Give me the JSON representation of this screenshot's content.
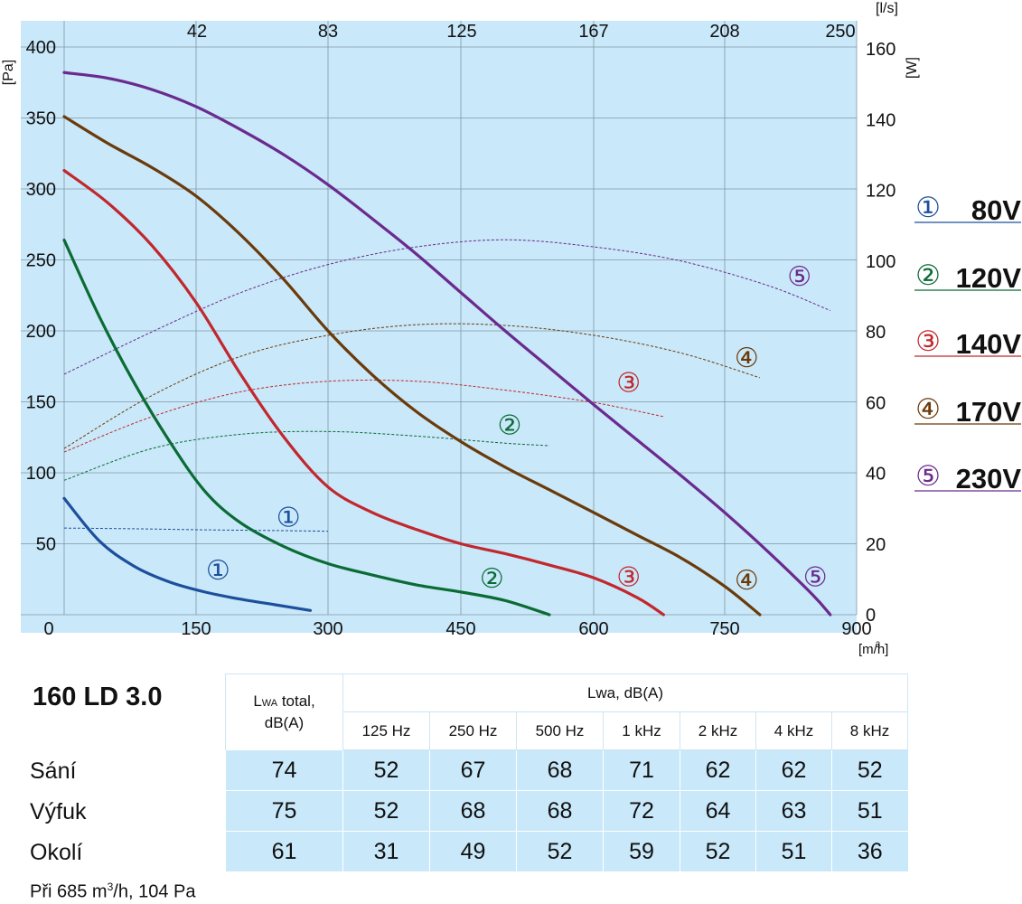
{
  "chart_data": {
    "type": "line",
    "x_axis": {
      "unit": "[m³/h]",
      "ticks": [
        "0",
        "150",
        "300",
        "450",
        "600",
        "750",
        "900"
      ],
      "range": [
        0,
        900
      ]
    },
    "x_top_axis": {
      "unit": "[l/s]",
      "ticks": [
        "42",
        "83",
        "125",
        "167",
        "208",
        "250"
      ]
    },
    "y_left_axis": {
      "unit": "[Pa]",
      "ticks": [
        "50",
        "100",
        "150",
        "200",
        "250",
        "300",
        "350",
        "400"
      ],
      "range": [
        0,
        400
      ]
    },
    "y_right_axis": {
      "unit": "[W]",
      "ticks": [
        "0",
        "20",
        "40",
        "60",
        "80",
        "100",
        "120",
        "140",
        "160"
      ],
      "range": [
        0,
        160
      ]
    },
    "grid": true,
    "series": [
      {
        "name": "80V",
        "marker": "①",
        "color": "#1c4f9c",
        "pressure": [
          [
            0,
            82
          ],
          [
            40,
            52
          ],
          [
            80,
            34
          ],
          [
            120,
            23
          ],
          [
            160,
            16
          ],
          [
            200,
            11
          ],
          [
            240,
            7
          ],
          [
            280,
            3
          ]
        ],
        "power": [
          [
            0,
            24.5
          ],
          [
            80,
            24.3
          ],
          [
            160,
            24.0
          ],
          [
            240,
            23.8
          ],
          [
            300,
            23.6
          ]
        ]
      },
      {
        "name": "120V",
        "marker": "②",
        "color": "#0b6b35",
        "pressure": [
          [
            0,
            264
          ],
          [
            40,
            210
          ],
          [
            80,
            163
          ],
          [
            120,
            122
          ],
          [
            160,
            87
          ],
          [
            200,
            65
          ],
          [
            250,
            48
          ],
          [
            300,
            36
          ],
          [
            350,
            28
          ],
          [
            400,
            21
          ],
          [
            450,
            16
          ],
          [
            500,
            10
          ],
          [
            550,
            0
          ]
        ],
        "power": [
          [
            0,
            38
          ],
          [
            100,
            47
          ],
          [
            200,
            51
          ],
          [
            300,
            51.8
          ],
          [
            400,
            50.5
          ],
          [
            500,
            48.5
          ],
          [
            550,
            47.8
          ]
        ]
      },
      {
        "name": "140V",
        "marker": "③",
        "color": "#c1272d",
        "pressure": [
          [
            0,
            313
          ],
          [
            50,
            290
          ],
          [
            100,
            260
          ],
          [
            150,
            220
          ],
          [
            200,
            170
          ],
          [
            250,
            125
          ],
          [
            300,
            90
          ],
          [
            350,
            72
          ],
          [
            400,
            60
          ],
          [
            450,
            50
          ],
          [
            500,
            43
          ],
          [
            550,
            35
          ],
          [
            600,
            26
          ],
          [
            650,
            12
          ],
          [
            680,
            0
          ]
        ],
        "power": [
          [
            0,
            46
          ],
          [
            100,
            56
          ],
          [
            200,
            63
          ],
          [
            300,
            66
          ],
          [
            400,
            66
          ],
          [
            500,
            63.5
          ],
          [
            600,
            60
          ],
          [
            680,
            56
          ]
        ]
      },
      {
        "name": "170V",
        "marker": "④",
        "color": "#6b3a0a",
        "pressure": [
          [
            0,
            351
          ],
          [
            50,
            332
          ],
          [
            100,
            315
          ],
          [
            150,
            295
          ],
          [
            200,
            268
          ],
          [
            250,
            236
          ],
          [
            300,
            200
          ],
          [
            350,
            169
          ],
          [
            400,
            143
          ],
          [
            450,
            122
          ],
          [
            500,
            104
          ],
          [
            550,
            88
          ],
          [
            600,
            72
          ],
          [
            650,
            56
          ],
          [
            700,
            40
          ],
          [
            750,
            20
          ],
          [
            790,
            0
          ]
        ],
        "power": [
          [
            0,
            47
          ],
          [
            100,
            62
          ],
          [
            200,
            73
          ],
          [
            300,
            79
          ],
          [
            400,
            82
          ],
          [
            500,
            81.8
          ],
          [
            600,
            79
          ],
          [
            700,
            74
          ],
          [
            790,
            67
          ]
        ]
      },
      {
        "name": "230V",
        "marker": "⑤",
        "color": "#6a2a8e",
        "pressure": [
          [
            0,
            382
          ],
          [
            50,
            378
          ],
          [
            100,
            370
          ],
          [
            150,
            358
          ],
          [
            200,
            342
          ],
          [
            250,
            324
          ],
          [
            300,
            303
          ],
          [
            350,
            279
          ],
          [
            400,
            254
          ],
          [
            450,
            227
          ],
          [
            500,
            200
          ],
          [
            550,
            174
          ],
          [
            600,
            148
          ],
          [
            650,
            123
          ],
          [
            700,
            98
          ],
          [
            750,
            72
          ],
          [
            800,
            44
          ],
          [
            850,
            14
          ],
          [
            870,
            0
          ]
        ],
        "power": [
          [
            0,
            68
          ],
          [
            100,
            80
          ],
          [
            200,
            91
          ],
          [
            300,
            99
          ],
          [
            400,
            104
          ],
          [
            500,
            106
          ],
          [
            600,
            104
          ],
          [
            700,
            100
          ],
          [
            800,
            93
          ],
          [
            870,
            86
          ]
        ]
      }
    ]
  },
  "legend": [
    {
      "marker": "①",
      "label": "80V",
      "color": "#1c4f9c"
    },
    {
      "marker": "②",
      "label": "120V",
      "color": "#0b6b35"
    },
    {
      "marker": "③",
      "label": "140V",
      "color": "#c1272d"
    },
    {
      "marker": "④",
      "label": "170V",
      "color": "#6b3a0a"
    },
    {
      "marker": "⑤",
      "label": "230V",
      "color": "#6a2a8e"
    }
  ],
  "table": {
    "model": "160 LD 3.0",
    "total_header_main": "L",
    "total_header_sub": "WA",
    "total_header_rest": " total,",
    "total_header_unit": "dB(A)",
    "band_header": "Lwa, dB(A)",
    "bands": [
      "125 Hz",
      "250 Hz",
      "500 Hz",
      "1 kHz",
      "2 kHz",
      "4 kHz",
      "8 kHz"
    ],
    "rows": [
      {
        "label": "Sání",
        "values": [
          "74",
          "52",
          "67",
          "68",
          "71",
          "62",
          "62",
          "52"
        ]
      },
      {
        "label": "Výfuk",
        "values": [
          "75",
          "52",
          "68",
          "68",
          "72",
          "64",
          "63",
          "51"
        ]
      },
      {
        "label": "Okolí",
        "values": [
          "61",
          "31",
          "49",
          "52",
          "59",
          "52",
          "51",
          "36"
        ]
      }
    ],
    "footnote_pre": "Při 685 m",
    "footnote_sup": "3",
    "footnote_post": "/h, 104 Pa"
  }
}
